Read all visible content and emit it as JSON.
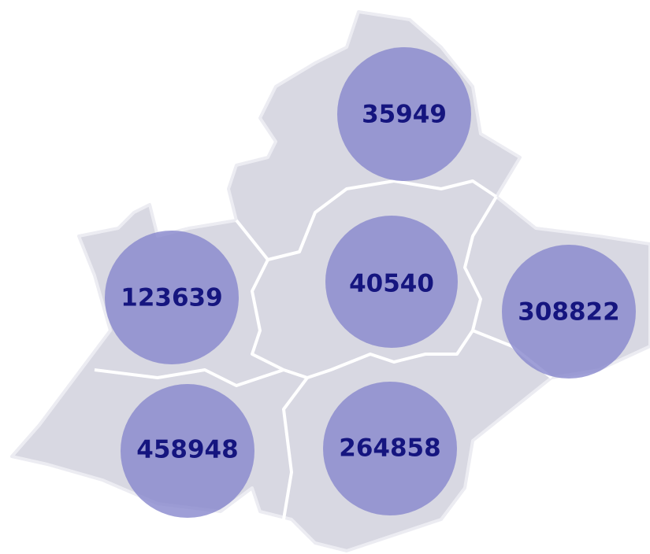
{
  "regions": [
    {
      "value": 35949
    },
    {
      "value": 40540
    },
    {
      "value": 123639
    },
    {
      "value": 308822
    },
    {
      "value": 458948
    },
    {
      "value": 264858
    }
  ]
}
